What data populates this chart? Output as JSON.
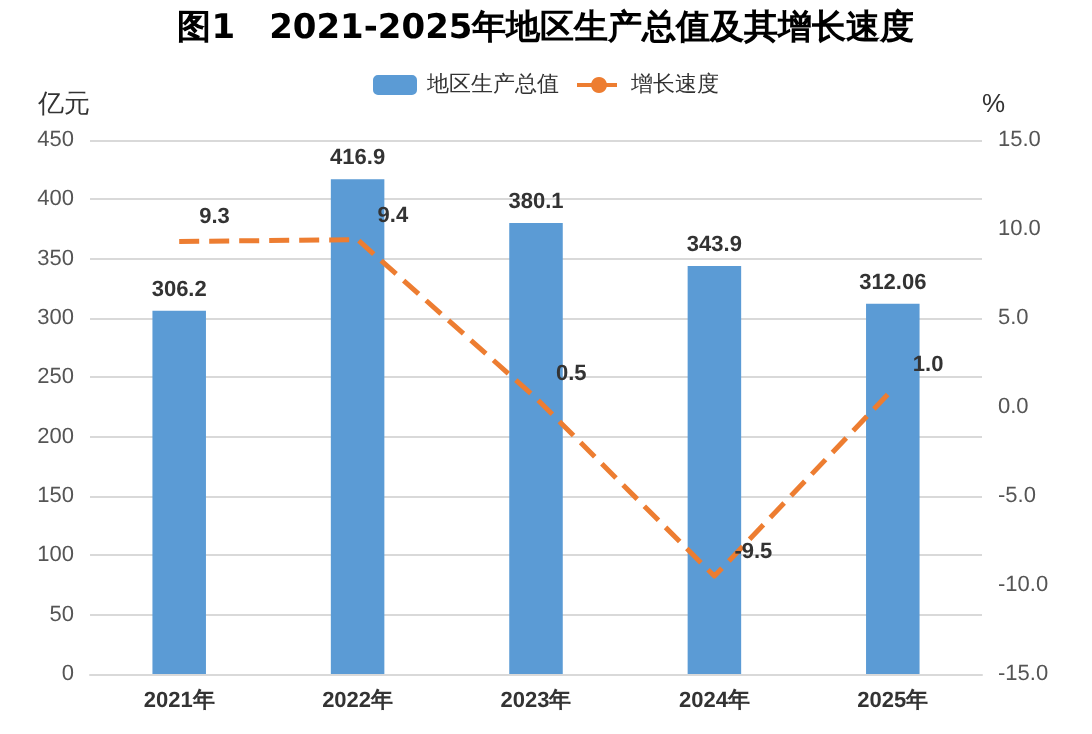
{
  "chart_data": {
    "type": "bar",
    "title": "图1　2021-2025年地区生产总值及其增长速度",
    "ylabel": "亿元",
    "y2label": "%",
    "categories": [
      "2021年",
      "2022年",
      "2023年",
      "2024年",
      "2025年"
    ],
    "series": [
      {
        "name": "地区生产总值",
        "color": "#5b9bd5",
        "values": [
          306.2,
          416.9,
          380.1,
          343.9,
          312.06
        ],
        "value_labels": [
          "306.2",
          "416.9",
          "380.1",
          "343.9",
          "312.06"
        ]
      },
      {
        "name": "增长速度",
        "type": "line",
        "axis": "y2",
        "color": "#ed7d31",
        "line_style": "dashed",
        "marker": "none",
        "values": [
          9.3,
          9.4,
          0.5,
          -9.5,
          1.0
        ],
        "value_labels": [
          "9.3",
          "9.4",
          "0.5",
          "-9.5",
          "1.0"
        ]
      }
    ],
    "ylim": [
      0,
      450
    ],
    "yticks": [
      0,
      50,
      100,
      150,
      200,
      250,
      300,
      350,
      400,
      450
    ],
    "y2lim": [
      -15,
      15
    ],
    "y2ticks": [
      {
        "value": -15,
        "label": "-15.0"
      },
      {
        "value": -10,
        "label": "-10.0"
      },
      {
        "value": -5,
        "label": "-5.0"
      },
      {
        "value": 0,
        "label": "0.0"
      },
      {
        "value": 5,
        "label": "5.0"
      },
      {
        "value": 10,
        "label": "10.0"
      },
      {
        "value": 15,
        "label": "15.0"
      }
    ],
    "grid": "y",
    "legend": "top"
  }
}
